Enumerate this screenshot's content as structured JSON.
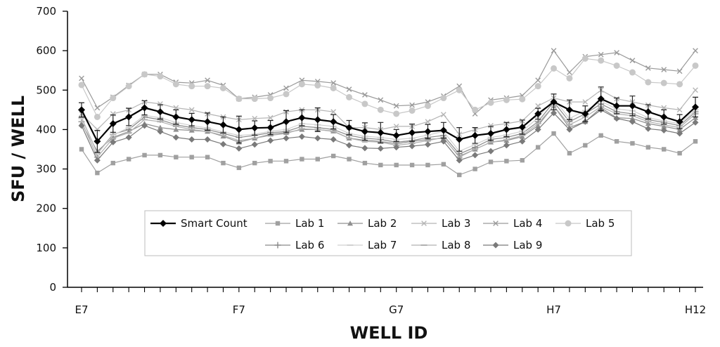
{
  "chart_data": {
    "type": "line",
    "title": "",
    "xlabel": "WELL ID",
    "ylabel": "SFU / WELL",
    "ylim": [
      0,
      700
    ],
    "yticks": [
      0,
      100,
      200,
      300,
      400,
      500,
      600,
      700
    ],
    "grid": false,
    "legend_position": "bottom-center",
    "x_tick_labels": [
      {
        "index": 0,
        "label": "E7"
      },
      {
        "index": 10,
        "label": "F7"
      },
      {
        "index": 20,
        "label": "G7"
      },
      {
        "index": 30,
        "label": "H7"
      },
      {
        "index": 39,
        "label": "H12"
      }
    ],
    "n_points": 40,
    "series": [
      {
        "name": "Smart Count",
        "color": "#000000",
        "marker": "diamond",
        "size": 10,
        "width": 2.2,
        "error_bars": true,
        "errors": [
          18,
          28,
          22,
          22,
          18,
          18,
          18,
          16,
          22,
          20,
          34,
          18,
          18,
          28,
          20,
          30,
          18,
          18,
          22,
          26,
          15,
          22,
          18,
          20,
          30,
          20,
          18,
          18,
          18,
          14,
          20,
          25,
          20,
          30,
          20,
          25,
          18,
          18,
          18,
          25
        ],
        "values": [
          450,
          370,
          415,
          432,
          455,
          445,
          432,
          425,
          420,
          412,
          400,
          404,
          405,
          420,
          430,
          425,
          420,
          405,
          395,
          392,
          385,
          392,
          395,
          398,
          375,
          385,
          390,
          400,
          406,
          440,
          470,
          450,
          440,
          478,
          460,
          460,
          445,
          432,
          420,
          457
        ]
      },
      {
        "name": "Lab 1",
        "color": "#a0a0a0",
        "marker": "square",
        "size": 8,
        "width": 1.2,
        "values": [
          350,
          290,
          315,
          325,
          335,
          335,
          330,
          330,
          330,
          315,
          303,
          315,
          320,
          320,
          325,
          325,
          333,
          325,
          315,
          310,
          310,
          310,
          310,
          312,
          285,
          300,
          318,
          320,
          322,
          355,
          390,
          340,
          360,
          385,
          370,
          365,
          355,
          350,
          340,
          370
        ]
      },
      {
        "name": "Lab 2",
        "color": "#909090",
        "marker": "triangle",
        "size": 8,
        "width": 1.2,
        "values": [
          415,
          345,
          380,
          395,
          415,
          405,
          400,
          398,
          395,
          383,
          368,
          378,
          388,
          392,
          400,
          400,
          396,
          378,
          373,
          370,
          364,
          370,
          375,
          378,
          332,
          350,
          368,
          372,
          382,
          410,
          460,
          405,
          420,
          455,
          430,
          428,
          415,
          408,
          400,
          430
        ]
      },
      {
        "name": "Lab 3",
        "color": "#b5b5b5",
        "marker": "x",
        "size": 9,
        "width": 1.2,
        "values": [
          440,
          400,
          440,
          450,
          470,
          465,
          455,
          450,
          440,
          432,
          425,
          428,
          430,
          445,
          450,
          450,
          445,
          405,
          405,
          400,
          408,
          408,
          420,
          438,
          388,
          400,
          410,
          415,
          422,
          460,
          480,
          470,
          470,
          500,
          478,
          470,
          462,
          455,
          450,
          500
        ]
      },
      {
        "name": "Lab 4",
        "color": "#9a9a9a",
        "marker": "x",
        "size": 9,
        "width": 1.2,
        "values": [
          530,
          455,
          482,
          512,
          540,
          540,
          520,
          518,
          525,
          512,
          478,
          482,
          488,
          505,
          525,
          522,
          518,
          502,
          488,
          475,
          460,
          462,
          470,
          485,
          510,
          440,
          475,
          480,
          486,
          525,
          600,
          545,
          585,
          590,
          595,
          575,
          556,
          552,
          548,
          600
        ]
      },
      {
        "name": "Lab 5",
        "color": "#c8c8c8",
        "marker": "circle",
        "size": 9,
        "width": 1.2,
        "values": [
          513,
          432,
          480,
          510,
          540,
          535,
          515,
          510,
          510,
          505,
          478,
          478,
          480,
          490,
          515,
          512,
          505,
          482,
          465,
          450,
          440,
          448,
          460,
          480,
          500,
          450,
          468,
          475,
          477,
          510,
          555,
          530,
          580,
          575,
          562,
          545,
          520,
          518,
          515,
          562
        ]
      },
      {
        "name": "Lab 6",
        "color": "#8a8a8a",
        "marker": "plus",
        "size": 9,
        "width": 1.2,
        "values": [
          430,
          340,
          388,
          400,
          432,
          425,
          412,
          405,
          400,
          390,
          380,
          385,
          392,
          395,
          408,
          405,
          400,
          385,
          378,
          375,
          368,
          372,
          380,
          385,
          338,
          355,
          375,
          380,
          390,
          420,
          470,
          420,
          440,
          465,
          445,
          440,
          425,
          418,
          410,
          445
        ]
      },
      {
        "name": "Lab 7",
        "color": "#d0d0d0",
        "marker": "dash",
        "size": 9,
        "width": 1.2,
        "values": [
          428,
          338,
          386,
          405,
          436,
          430,
          418,
          410,
          404,
          394,
          385,
          388,
          396,
          400,
          415,
          412,
          408,
          390,
          383,
          380,
          375,
          378,
          386,
          395,
          345,
          362,
          380,
          386,
          396,
          430,
          478,
          428,
          448,
          472,
          452,
          448,
          430,
          422,
          415,
          450
        ]
      },
      {
        "name": "Lab 8",
        "color": "#b0b0b0",
        "marker": "dash",
        "size": 9,
        "width": 1.2,
        "values": [
          420,
          330,
          378,
          392,
          425,
          420,
          408,
          400,
          395,
          385,
          372,
          378,
          385,
          390,
          402,
          400,
          395,
          378,
          370,
          368,
          360,
          365,
          372,
          380,
          330,
          350,
          368,
          374,
          385,
          415,
          460,
          412,
          432,
          458,
          440,
          435,
          420,
          412,
          405,
          440
        ]
      },
      {
        "name": "Lab 9",
        "color": "#7a7a7a",
        "marker": "diamond",
        "size": 9,
        "width": 1.2,
        "values": [
          410,
          322,
          368,
          380,
          410,
          395,
          380,
          375,
          375,
          363,
          352,
          362,
          372,
          378,
          382,
          378,
          375,
          360,
          353,
          352,
          355,
          358,
          362,
          370,
          322,
          335,
          345,
          360,
          370,
          400,
          442,
          400,
          420,
          450,
          428,
          420,
          402,
          398,
          390,
          418
        ]
      }
    ]
  }
}
